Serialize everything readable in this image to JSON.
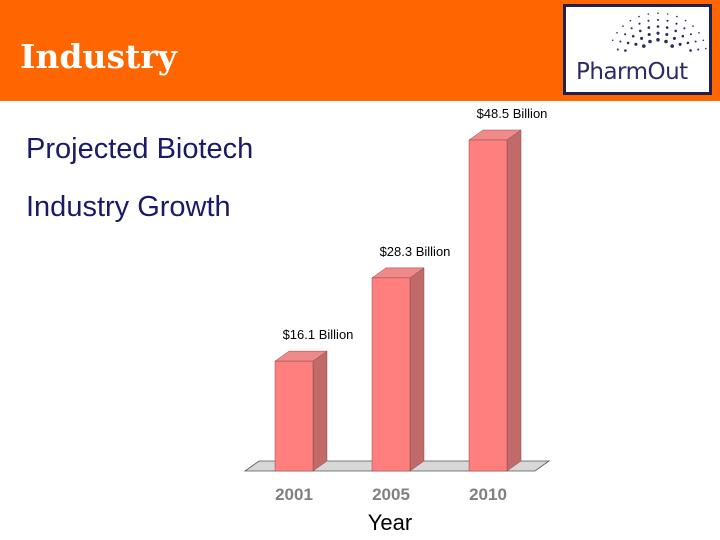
{
  "slide": {
    "title": "Industry",
    "heading_line1": "Projected Biotech",
    "heading_line2": "Industry Growth"
  },
  "logo": {
    "text": "PharmOut",
    "icon": "dot-arc-logo-icon"
  },
  "colors": {
    "header": "#ff6600",
    "bar_front": "#ff7f7f",
    "bar_side": "#c06a6a",
    "bar_top": "#f08a8a",
    "heading": "#1a1a66",
    "logo_border": "#1f1f52"
  },
  "chart_data": {
    "type": "bar",
    "style": "3d",
    "categories": [
      "2001",
      "2005",
      "2010"
    ],
    "values": [
      16.1,
      28.3,
      48.5
    ],
    "data_labels": [
      "$16.1 Billion",
      "$28.3 Billion",
      "$48.5 Billion"
    ],
    "xlabel": "Year",
    "ylabel": "",
    "ylim": [
      0,
      50
    ],
    "grid": false,
    "legend": "none"
  }
}
